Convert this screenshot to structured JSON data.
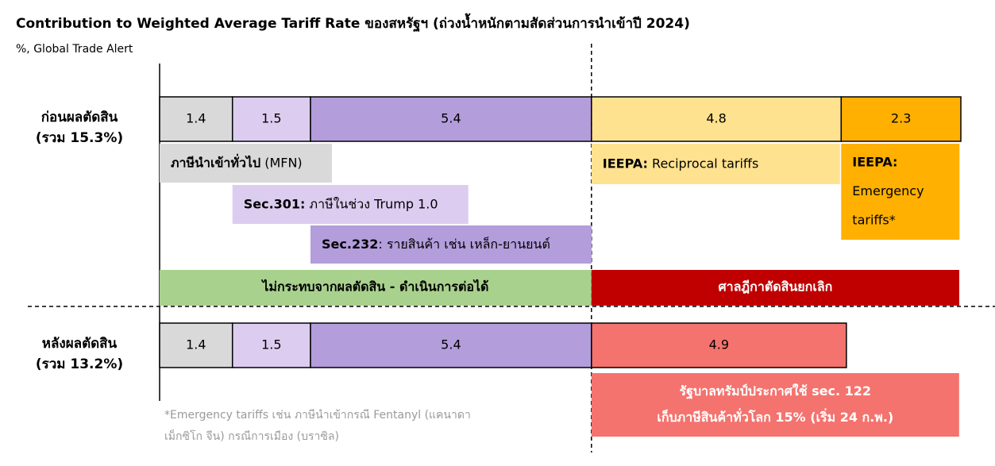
{
  "chart_data": {
    "type": "bar",
    "orientation": "horizontal",
    "stacked": true,
    "title": "Contribution to Weighted Average Tariff Rate ของสหรัฐฯ (ถ่วงน้ำหนักตามสัดส่วนการนำเข้าปี 2024)",
    "subtitle": "%, Global Trade Alert",
    "categories": [
      [
        "ก่อนผลตัดสิน",
        "(รวม 15.3%)"
      ],
      [
        "หลังผลตัดสิน",
        "(รวม 13.2%)"
      ]
    ],
    "series": [
      {
        "name": [
          "ภาษีนำเข้าทั่วไป",
          " (MFN)"
        ],
        "color": "#d9d9d9",
        "values": [
          1.4,
          1.4
        ]
      },
      {
        "name": [
          "Sec.301:",
          " ภาษีในช่วง Trump 1.0"
        ],
        "color": "#dccdf0",
        "values": [
          1.5,
          1.5
        ]
      },
      {
        "name": [
          "Sec.232",
          ": รายสินค้า เช่น เหล็ก-ยานยนต์"
        ],
        "color": "#b39ddb",
        "values": [
          5.4,
          5.4
        ]
      },
      {
        "name": [
          "IEEPA:",
          " Reciprocal tariffs"
        ],
        "color": "#ffe28f",
        "values": [
          4.8,
          null
        ]
      },
      {
        "name": [
          "IEEPA:",
          "Emergency",
          "tariffs*"
        ],
        "color": "#ffb000",
        "values": [
          2.3,
          null
        ]
      },
      {
        "name": [
          "รัฐบาลทรัมป์ประกาศใช้ sec. 122",
          "เก็บภาษีสินค้าทั่วโลก 15% (เริ่ม 24 ก.พ.)"
        ],
        "color": "#f4736e",
        "values": [
          null,
          4.9
        ]
      }
    ],
    "banners": [
      {
        "text": "ไม่กระทบจากผลตัดสิน - ดำเนินการต่อได้",
        "color": "#a9d18e"
      },
      {
        "text": "ศาลฎีกาตัดสินยกเลิก",
        "color": "#c00000"
      }
    ],
    "footnote": [
      "*Emergency tariffs เช่น ภาษีนำเข้ากรณี Fentanyl (แคนาดา",
      "เม็กซิโก จีน) กรณีการเมือง (บราซิล)"
    ]
  }
}
